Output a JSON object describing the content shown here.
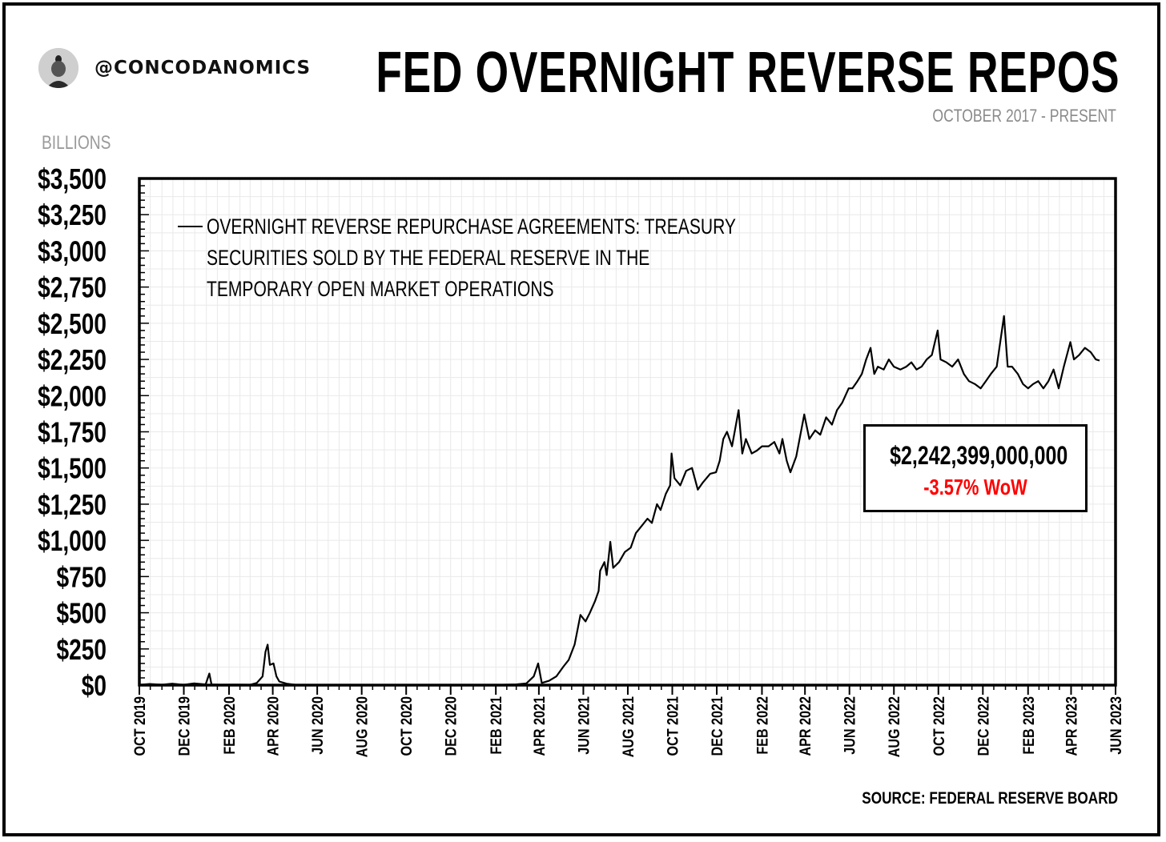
{
  "header": {
    "handle": "@CONCODANOMICS",
    "title": "FED OVERNIGHT REVERSE REPOS",
    "subtitle": "OCTOBER 2017 - PRESENT",
    "units_label": "BILLIONS"
  },
  "footer": {
    "source": "SOURCE: FEDERAL RESERVE BOARD"
  },
  "annotation": {
    "value": "$2,242,399,000,000",
    "change": "-3.57% WoW",
    "change_color": "#ff0000"
  },
  "chart_data": {
    "type": "line",
    "title": "FED OVERNIGHT REVERSE REPOS",
    "ylabel": "BILLIONS",
    "ylim": [
      0,
      3500
    ],
    "xlim": [
      "2019-10-01",
      "2023-06-01"
    ],
    "grid": true,
    "legend_placement": "top-left",
    "yticks": [
      0,
      250,
      500,
      750,
      1000,
      1250,
      1500,
      1750,
      2000,
      2250,
      2500,
      2750,
      3000,
      3250,
      3500
    ],
    "ytick_labels": [
      "$0",
      "$250",
      "$500",
      "$750",
      "$1,000",
      "$1,250",
      "$1,500",
      "$1,750",
      "$2,000",
      "$2,250",
      "$2,500",
      "$2,750",
      "$3,000",
      "$3,250",
      "$3,500"
    ],
    "xticks": [
      "2019-10-01",
      "2019-12-01",
      "2020-02-01",
      "2020-04-01",
      "2020-06-01",
      "2020-08-01",
      "2020-10-01",
      "2020-12-01",
      "2021-02-01",
      "2021-04-01",
      "2021-06-01",
      "2021-08-01",
      "2021-10-01",
      "2021-12-01",
      "2022-02-01",
      "2022-04-01",
      "2022-06-01",
      "2022-08-01",
      "2022-10-01",
      "2022-12-01",
      "2023-02-01",
      "2023-04-01",
      "2023-06-01"
    ],
    "xtick_labels": [
      "OCT 2019",
      "DEC 2019",
      "FEB 2020",
      "APR 2020",
      "JUN 2020",
      "AUG 2020",
      "OCT 2020",
      "DEC 2020",
      "FEB 2021",
      "APR 2021",
      "JUN 2021",
      "AUG 2021",
      "OCT 2021",
      "DEC 2021",
      "FEB 2022",
      "APR 2022",
      "JUN 2022",
      "AUG 2022",
      "OCT 2022",
      "DEC 2022",
      "FEB 2023",
      "APR 2023",
      "JUN 2023"
    ],
    "series": [
      {
        "name": "OVERNIGHT REVERSE REPURCHASE AGREEMENTS: TREASURY SECURITIES SOLD BY THE FEDERAL RESERVE IN THE TEMPORARY OPEN MARKET OPERATIONS",
        "color": "#000000",
        "points": [
          [
            "2019-10-01",
            2
          ],
          [
            "2019-10-15",
            8
          ],
          [
            "2019-11-01",
            3
          ],
          [
            "2019-11-15",
            10
          ],
          [
            "2019-12-01",
            2
          ],
          [
            "2019-12-15",
            12
          ],
          [
            "2019-12-31",
            5
          ],
          [
            "2020-01-05",
            80
          ],
          [
            "2020-01-08",
            5
          ],
          [
            "2020-01-20",
            3
          ],
          [
            "2020-02-10",
            4
          ],
          [
            "2020-03-01",
            2
          ],
          [
            "2020-03-10",
            15
          ],
          [
            "2020-03-18",
            60
          ],
          [
            "2020-03-22",
            230
          ],
          [
            "2020-03-25",
            280
          ],
          [
            "2020-03-28",
            140
          ],
          [
            "2020-04-02",
            150
          ],
          [
            "2020-04-06",
            60
          ],
          [
            "2020-04-10",
            25
          ],
          [
            "2020-04-20",
            10
          ],
          [
            "2020-05-01",
            3
          ],
          [
            "2020-06-01",
            1
          ],
          [
            "2020-08-01",
            0
          ],
          [
            "2020-10-01",
            0
          ],
          [
            "2020-12-01",
            0
          ],
          [
            "2021-02-01",
            1
          ],
          [
            "2021-03-01",
            5
          ],
          [
            "2021-03-15",
            12
          ],
          [
            "2021-03-25",
            60
          ],
          [
            "2021-03-31",
            150
          ],
          [
            "2021-04-05",
            15
          ],
          [
            "2021-04-15",
            30
          ],
          [
            "2021-04-25",
            60
          ],
          [
            "2021-05-05",
            130
          ],
          [
            "2021-05-12",
            175
          ],
          [
            "2021-05-20",
            280
          ],
          [
            "2021-05-28",
            485
          ],
          [
            "2021-06-04",
            440
          ],
          [
            "2021-06-10",
            500
          ],
          [
            "2021-06-17",
            580
          ],
          [
            "2021-06-22",
            650
          ],
          [
            "2021-06-24",
            790
          ],
          [
            "2021-06-30",
            850
          ],
          [
            "2021-07-03",
            760
          ],
          [
            "2021-07-08",
            990
          ],
          [
            "2021-07-12",
            810
          ],
          [
            "2021-07-20",
            850
          ],
          [
            "2021-07-28",
            920
          ],
          [
            "2021-08-05",
            950
          ],
          [
            "2021-08-12",
            1050
          ],
          [
            "2021-08-20",
            1100
          ],
          [
            "2021-08-28",
            1150
          ],
          [
            "2021-09-03",
            1120
          ],
          [
            "2021-09-10",
            1250
          ],
          [
            "2021-09-15",
            1210
          ],
          [
            "2021-09-22",
            1320
          ],
          [
            "2021-09-28",
            1380
          ],
          [
            "2021-09-30",
            1600
          ],
          [
            "2021-10-04",
            1430
          ],
          [
            "2021-10-12",
            1380
          ],
          [
            "2021-10-20",
            1480
          ],
          [
            "2021-10-28",
            1500
          ],
          [
            "2021-11-05",
            1350
          ],
          [
            "2021-11-12",
            1400
          ],
          [
            "2021-11-22",
            1460
          ],
          [
            "2021-11-30",
            1470
          ],
          [
            "2021-12-05",
            1550
          ],
          [
            "2021-12-10",
            1700
          ],
          [
            "2021-12-15",
            1750
          ],
          [
            "2021-12-22",
            1650
          ],
          [
            "2021-12-31",
            1900
          ],
          [
            "2022-01-05",
            1600
          ],
          [
            "2022-01-10",
            1700
          ],
          [
            "2022-01-18",
            1600
          ],
          [
            "2022-01-25",
            1620
          ],
          [
            "2022-02-01",
            1650
          ],
          [
            "2022-02-10",
            1650
          ],
          [
            "2022-02-18",
            1680
          ],
          [
            "2022-02-25",
            1600
          ],
          [
            "2022-03-01",
            1700
          ],
          [
            "2022-03-07",
            1550
          ],
          [
            "2022-03-12",
            1470
          ],
          [
            "2022-03-20",
            1580
          ],
          [
            "2022-03-31",
            1870
          ],
          [
            "2022-04-07",
            1700
          ],
          [
            "2022-04-15",
            1760
          ],
          [
            "2022-04-22",
            1730
          ],
          [
            "2022-04-30",
            1850
          ],
          [
            "2022-05-08",
            1800
          ],
          [
            "2022-05-15",
            1900
          ],
          [
            "2022-05-22",
            1950
          ],
          [
            "2022-05-31",
            2050
          ],
          [
            "2022-06-05",
            2050
          ],
          [
            "2022-06-12",
            2100
          ],
          [
            "2022-06-18",
            2150
          ],
          [
            "2022-06-24",
            2250
          ],
          [
            "2022-06-30",
            2330
          ],
          [
            "2022-07-05",
            2150
          ],
          [
            "2022-07-10",
            2200
          ],
          [
            "2022-07-18",
            2180
          ],
          [
            "2022-07-25",
            2250
          ],
          [
            "2022-08-01",
            2200
          ],
          [
            "2022-08-10",
            2180
          ],
          [
            "2022-08-18",
            2200
          ],
          [
            "2022-08-25",
            2230
          ],
          [
            "2022-09-01",
            2180
          ],
          [
            "2022-09-08",
            2200
          ],
          [
            "2022-09-15",
            2250
          ],
          [
            "2022-09-22",
            2280
          ],
          [
            "2022-09-30",
            2450
          ],
          [
            "2022-10-04",
            2250
          ],
          [
            "2022-10-12",
            2230
          ],
          [
            "2022-10-20",
            2200
          ],
          [
            "2022-10-28",
            2250
          ],
          [
            "2022-11-05",
            2150
          ],
          [
            "2022-11-12",
            2100
          ],
          [
            "2022-11-20",
            2080
          ],
          [
            "2022-11-28",
            2050
          ],
          [
            "2022-12-05",
            2100
          ],
          [
            "2022-12-12",
            2150
          ],
          [
            "2022-12-20",
            2200
          ],
          [
            "2022-12-30",
            2550
          ],
          [
            "2023-01-04",
            2200
          ],
          [
            "2023-01-10",
            2200
          ],
          [
            "2023-01-18",
            2150
          ],
          [
            "2023-01-25",
            2080
          ],
          [
            "2023-02-01",
            2050
          ],
          [
            "2023-02-08",
            2080
          ],
          [
            "2023-02-15",
            2100
          ],
          [
            "2023-02-22",
            2050
          ],
          [
            "2023-03-01",
            2100
          ],
          [
            "2023-03-08",
            2180
          ],
          [
            "2023-03-15",
            2050
          ],
          [
            "2023-03-22",
            2200
          ],
          [
            "2023-03-31",
            2370
          ],
          [
            "2023-04-05",
            2250
          ],
          [
            "2023-04-12",
            2280
          ],
          [
            "2023-04-20",
            2330
          ],
          [
            "2023-04-28",
            2300
          ],
          [
            "2023-05-05",
            2250
          ],
          [
            "2023-05-10",
            2242
          ]
        ]
      }
    ]
  }
}
